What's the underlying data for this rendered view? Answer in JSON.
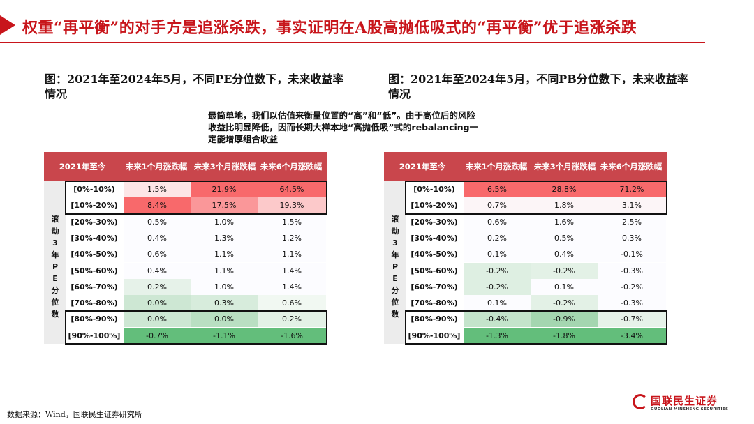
{
  "title": "权重“再平衡”的对手方是追涨杀跌，事实证明在A股高抛低吸式的“再平衡”优于追涨杀跌",
  "callout": "最简单地，我们以估值来衡量位置的“高”和“低”。由于高位后的风险收益比明显降低，因而长期大样本地“高抛低吸”式的rebalancing一定能增厚组合收益",
  "tables": [
    {
      "caption": "图：2021年至2024年5月，不同PE分位数下，未来收益率情况",
      "corner": "2021年至今",
      "columns": [
        "未来1个月涨跌幅",
        "未来3个月涨跌幅",
        "未来6个月涨跌幅"
      ],
      "side_label": [
        "滚",
        "动",
        "3",
        "年",
        "P",
        "E",
        "分",
        "位",
        "数"
      ],
      "rows": [
        {
          "label": "[0%-10%)",
          "values": [
            "1.5%",
            "21.9%",
            "64.5%"
          ],
          "colors": [
            "#fde6e7",
            "#f8696b",
            "#f8696b"
          ]
        },
        {
          "label": "[10%-20%)",
          "values": [
            "8.4%",
            "17.5%",
            "19.3%"
          ],
          "colors": [
            "#f8696b",
            "#fa9799",
            "#fcc9ca"
          ]
        },
        {
          "label": "[20%-30%)",
          "values": [
            "0.5%",
            "1.0%",
            "1.5%"
          ],
          "colors": [
            "#fcfcff",
            "#fcfcff",
            "#fcfcff"
          ]
        },
        {
          "label": "[30%-40%)",
          "values": [
            "0.4%",
            "1.3%",
            "1.2%"
          ],
          "colors": [
            "#fcfcff",
            "#fcfcff",
            "#fcfcff"
          ]
        },
        {
          "label": "[40%-50%)",
          "values": [
            "0.6%",
            "1.1%",
            "1.1%"
          ],
          "colors": [
            "#fcfcff",
            "#fcfcff",
            "#fcfcff"
          ]
        },
        {
          "label": "[50%-60%)",
          "values": [
            "0.4%",
            "1.1%",
            "1.4%"
          ],
          "colors": [
            "#fcfcff",
            "#fcfcff",
            "#fcfcff"
          ]
        },
        {
          "label": "[60%-70%)",
          "values": [
            "0.2%",
            "1.0%",
            "1.4%"
          ],
          "colors": [
            "#e6f2e9",
            "#fcfcff",
            "#fcfcff"
          ]
        },
        {
          "label": "[70%-80%)",
          "values": [
            "0.0%",
            "0.3%",
            "0.6%"
          ],
          "colors": [
            "#cde7d3",
            "#d7ecdc",
            "#f1f8f2"
          ]
        },
        {
          "label": "[80%-90%)",
          "values": [
            "0.0%",
            "0.0%",
            "0.2%"
          ],
          "colors": [
            "#cde7d3",
            "#b9dfc2",
            "#e3f1e6"
          ]
        },
        {
          "label": "[90%-100%]",
          "values": [
            "-0.7%",
            "-1.1%",
            "-1.6%"
          ],
          "colors": [
            "#63be7b",
            "#63be7b",
            "#63be7b"
          ]
        }
      ]
    },
    {
      "caption": "图：2021年至2024年5月，不同PB分位数下，未来收益率情况",
      "corner": "2021年至今",
      "columns": [
        "未来1个月涨跌幅",
        "未来3个月涨跌幅",
        "未来6个月涨跌幅"
      ],
      "side_label": [
        "滚",
        "动",
        "3",
        "年",
        "P",
        "E",
        "分",
        "位",
        "数"
      ],
      "rows": [
        {
          "label": "[0%-10%)",
          "values": [
            "6.5%",
            "28.8%",
            "71.2%"
          ],
          "colors": [
            "#f8696b",
            "#f8696b",
            "#f8696b"
          ]
        },
        {
          "label": "[10%-20%)",
          "values": [
            "0.7%",
            "1.8%",
            "3.1%"
          ],
          "colors": [
            "#fcf5f7",
            "#fcf5f7",
            "#fcf5f7"
          ]
        },
        {
          "label": "[20%-30%)",
          "values": [
            "0.6%",
            "1.6%",
            "2.5%"
          ],
          "colors": [
            "#fcfcff",
            "#fcfcff",
            "#fcfcff"
          ]
        },
        {
          "label": "[30%-40%)",
          "values": [
            "0.2%",
            "0.5%",
            "0.3%"
          ],
          "colors": [
            "#fcfcff",
            "#fcfcff",
            "#fcfcff"
          ]
        },
        {
          "label": "[40%-50%)",
          "values": [
            "0.1%",
            "0.4%",
            "-0.1%"
          ],
          "colors": [
            "#fcfcff",
            "#fcfcff",
            "#fcfcff"
          ]
        },
        {
          "label": "[50%-60%)",
          "values": [
            "-0.2%",
            "-0.2%",
            "-0.3%"
          ],
          "colors": [
            "#deefe2",
            "#e3f1e6",
            "#fcfcff"
          ]
        },
        {
          "label": "[60%-70%)",
          "values": [
            "-0.2%",
            "0.1%",
            "-0.2%"
          ],
          "colors": [
            "#deefe2",
            "#fcfcff",
            "#fcfcff"
          ]
        },
        {
          "label": "[70%-80%)",
          "values": [
            "0.1%",
            "-0.2%",
            "-0.3%"
          ],
          "colors": [
            "#fcfcff",
            "#e3f1e6",
            "#fcfcff"
          ]
        },
        {
          "label": "[80%-90%)",
          "values": [
            "-0.4%",
            "-0.9%",
            "-0.7%"
          ],
          "colors": [
            "#c4e4cb",
            "#a4d6b0",
            "#e6f2e9"
          ]
        },
        {
          "label": "[90%-100%]",
          "values": [
            "-1.3%",
            "-1.8%",
            "-3.4%"
          ],
          "colors": [
            "#63be7b",
            "#63be7b",
            "#63be7b"
          ]
        }
      ]
    }
  ],
  "footer": {
    "source": "数据来源：Wind，国联民生证券研究所",
    "logo_name": "国联民生证券",
    "logo_en": "GUOLIAN MINSHENG SECURITIES"
  },
  "colors": {
    "brand_red": "#c8151b",
    "header_red": "#c9464c",
    "heat_red": "#f8696b",
    "heat_green": "#63be7b"
  }
}
